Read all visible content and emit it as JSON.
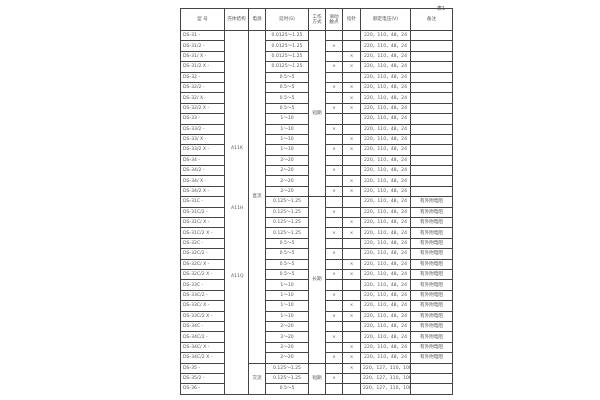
{
  "table_no": "表1",
  "headers": {
    "model": "型 号",
    "shell": "壳体结构",
    "power": "电源",
    "delay": "延时(S)",
    "mode": "工作方式",
    "slide": "滑动触点",
    "pointer": "指针",
    "voltage": "额定电压(V)",
    "remark": "备注"
  },
  "shells": [
    "A11K",
    "A11H",
    "A11Q"
  ],
  "power": {
    "dc": "直流",
    "ac": "交流"
  },
  "mode": {
    "short": "短期",
    "long": "长期",
    "short2": "短期"
  },
  "rows": [
    [
      "DS-31 -",
      "0.0125～1.25",
      "",
      "",
      "220，110，48，24",
      ""
    ],
    [
      "DS-31/2 -",
      "0.0125～1.25",
      "×",
      "",
      "220，110，48，24",
      ""
    ],
    [
      "DS-31/ X -",
      "0.0125～1.25",
      "",
      "×",
      "220，110，48，24",
      ""
    ],
    [
      "DS-31/2 X -",
      "0.0125～1.25",
      "×",
      "×",
      "220，110，48，24",
      ""
    ],
    [
      "DS-32 -",
      "0.5～5",
      "",
      "",
      "220，110，48，24",
      ""
    ],
    [
      "DS-32/2 -",
      "0.5～5",
      "×",
      "×",
      "220，110，48，24",
      ""
    ],
    [
      "DS-32/ X -",
      "0.5～5",
      "",
      "×",
      "220，110，48，24",
      ""
    ],
    [
      "DS-32/2 X -",
      "0.5～5",
      "×",
      "×",
      "220，110，48，24",
      ""
    ],
    [
      "DS-33 -",
      "1～10",
      "",
      "",
      "220，110，48，24",
      ""
    ],
    [
      "DS-33/2 -",
      "1～10",
      "×",
      "",
      "220，110，48，24",
      ""
    ],
    [
      "DS-33/ X -",
      "1～10",
      "",
      "×",
      "220，110，48，24",
      ""
    ],
    [
      "DS-33/2 X -",
      "1～10",
      "×",
      "×",
      "220，110，48，24",
      ""
    ],
    [
      "DS-34 -",
      "2～20",
      "",
      "",
      "220，110，48，24",
      ""
    ],
    [
      "DS-34/2 -",
      "2～20",
      "×",
      "",
      "220，110，48，24",
      ""
    ],
    [
      "DS-34/ X -",
      "2～20",
      "",
      "×",
      "220，110，48，24",
      ""
    ],
    [
      "DS-34/2 X -",
      "2～20",
      "×",
      "×",
      "220，110，48，24",
      ""
    ],
    [
      "DS-31C -",
      "0.125～1.25",
      "",
      "",
      "220，110，48，24",
      "有外附电阻"
    ],
    [
      "DS-31C/2 -",
      "0.125～1.25",
      "×",
      "",
      "220，110，48，24",
      "有外附电阻"
    ],
    [
      "DS-31C/ X -",
      "0.125～1.25",
      "",
      "×",
      "220，110，48，24",
      "有外附电阻"
    ],
    [
      "DS-31C/2 X -",
      "0.125～1.25",
      "×",
      "×",
      "220，110，48，24",
      "有外附电阻"
    ],
    [
      "DS-32C -",
      "0.5～5",
      "",
      "",
      "220，110，48，24",
      "有外附电阻"
    ],
    [
      "DS-32C/2 -",
      "0.5～5",
      "×",
      "",
      "220，110，48，24",
      "有外附电阻"
    ],
    [
      "DS-32C/ X -",
      "0.5～5",
      "",
      "×",
      "220，110，48，24",
      "有外附电阻"
    ],
    [
      "DS-32C/2 X -",
      "0.5～5",
      "×",
      "×",
      "220，110，48，24",
      "有外附电阻"
    ],
    [
      "DS-33C -",
      "1～10",
      "",
      "",
      "220，110，48，24",
      "有外附电阻"
    ],
    [
      "DS-33C/2 -",
      "1～10",
      "×",
      "",
      "220，110，48，24",
      "有外附电阻"
    ],
    [
      "DS-33C/ X -",
      "1～10",
      "",
      "×",
      "220，110，48，24",
      "有外附电阻"
    ],
    [
      "DS-33C/2 X -",
      "1～10",
      "×",
      "×",
      "220，110，48，24",
      "有外附电阻"
    ],
    [
      "DS-34C -",
      "2～20",
      "",
      "",
      "220，110，48，24",
      "有外附电阻"
    ],
    [
      "DS-34C/2 -",
      "2～20",
      "×",
      "",
      "220，110，48，24",
      "有外附电阻"
    ],
    [
      "DS-34C/ X -",
      "2～20",
      "",
      "×",
      "220，110，48，24",
      "有外附电阻"
    ],
    [
      "DS-34C/2 X -",
      "2～20",
      "×",
      "×",
      "220，110，48，24",
      "有外附电阻"
    ],
    [
      "DS-35 -",
      "0.125～1.25",
      "",
      "×",
      "220，127，110，100",
      ""
    ],
    [
      "DS-35/2 -",
      "0.125～1.25",
      "×",
      "",
      "220，127，110，100",
      ""
    ],
    [
      "DS-36 -",
      "0.5～5",
      "",
      "",
      "220，127，110，100",
      ""
    ]
  ]
}
